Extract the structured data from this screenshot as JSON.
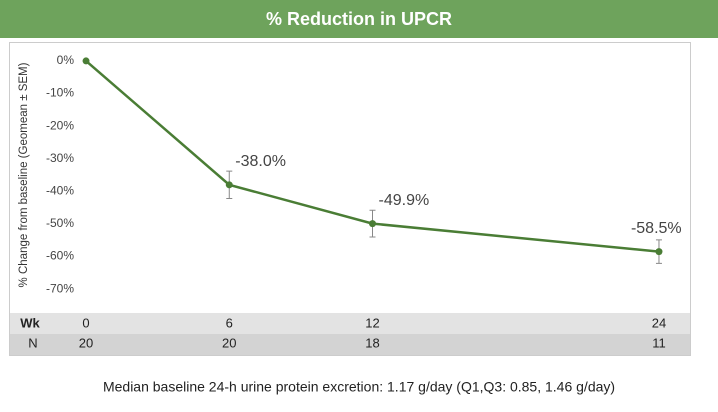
{
  "chart_data": {
    "type": "line",
    "title": "% Reduction in UPCR",
    "ylabel": "% Change from baseline  (Geomean ± SEM)",
    "xlabel": "Wk",
    "x": [
      0,
      6,
      12,
      24
    ],
    "series": [
      {
        "name": "UPCR",
        "color": "#4a7d35",
        "values": [
          0,
          -38.0,
          -49.9,
          -58.5
        ],
        "errors": [
          null,
          4.2,
          4.1,
          3.6
        ],
        "value_labels": [
          null,
          "-38.0%",
          "-49.9%",
          "-58.5%"
        ]
      }
    ],
    "xlim": [
      -1.3,
      25.3
    ],
    "ylim": [
      -76.4,
      5.5
    ],
    "yticks": [
      {
        "value": 0,
        "label": "0%"
      },
      {
        "value": -10,
        "label": "-10%"
      },
      {
        "value": -20,
        "label": "-20%"
      },
      {
        "value": -30,
        "label": "-30%"
      },
      {
        "value": -40,
        "label": "-40%"
      },
      {
        "value": -50,
        "label": "-50%"
      },
      {
        "value": -60,
        "label": "-60%"
      },
      {
        "value": -70,
        "label": "-70%"
      }
    ],
    "n_label": "N",
    "n": [
      20,
      20,
      18,
      11
    ],
    "footnote": "Median baseline 24-h urine protein excretion: 1.17 g/day (Q1,Q3: 0.85, 1.46 g/day)"
  }
}
